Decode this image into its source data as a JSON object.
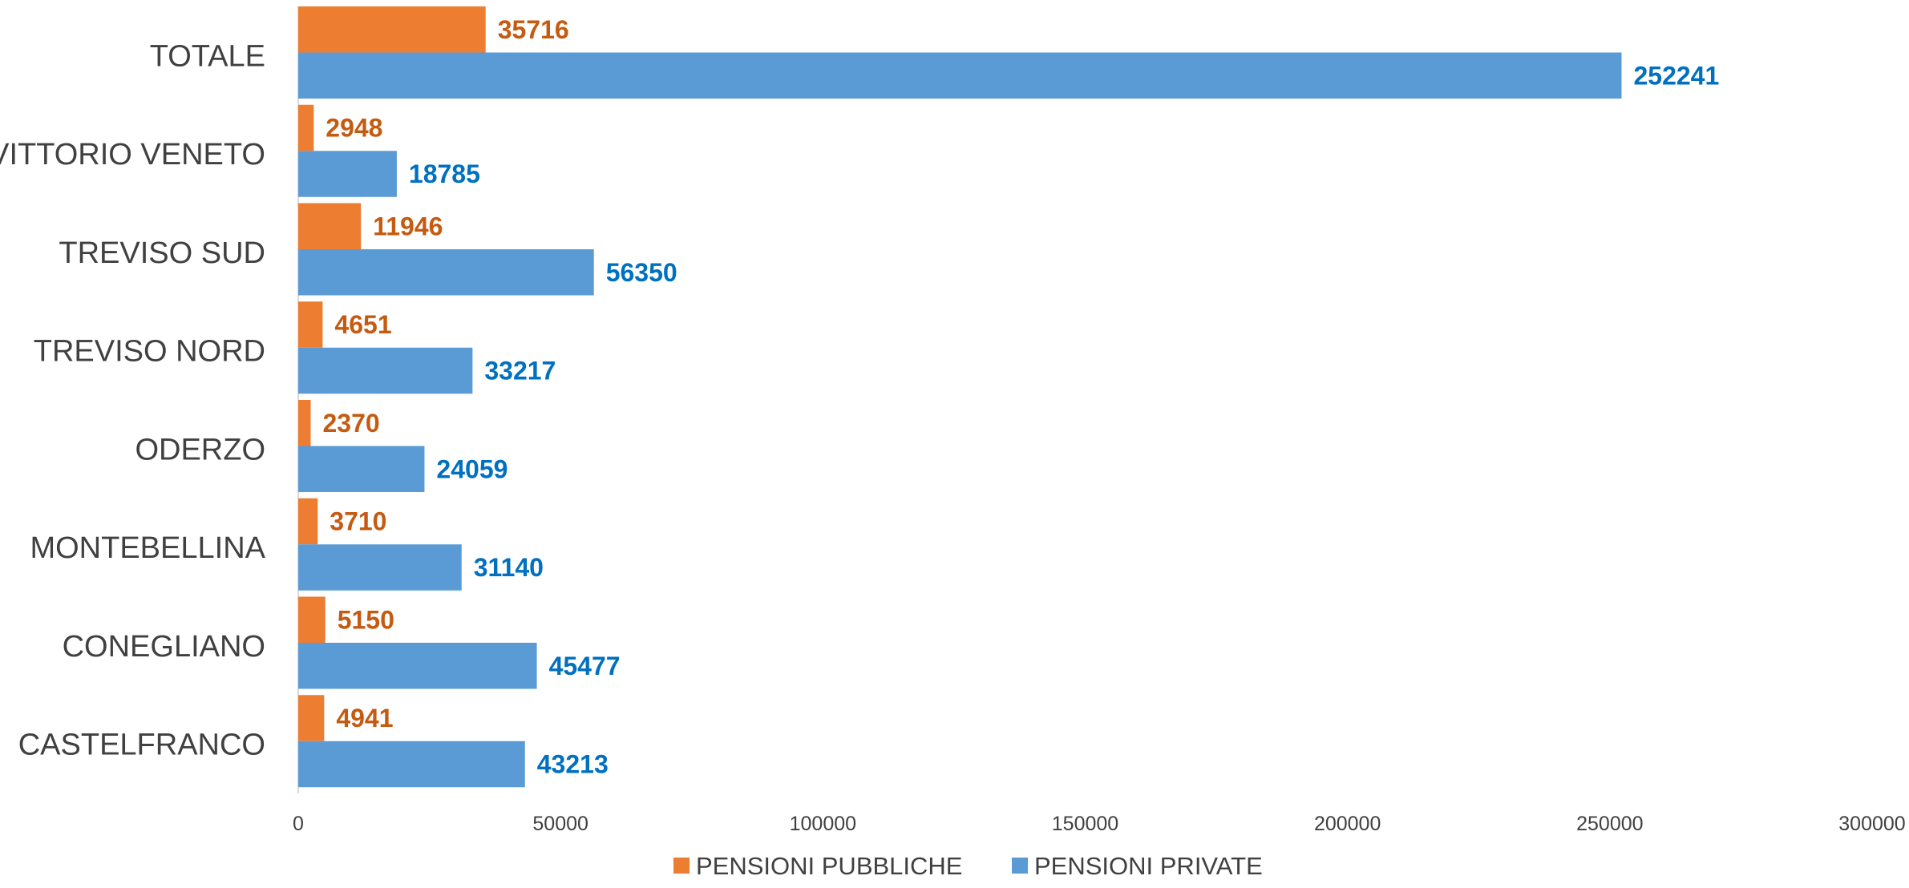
{
  "chart_data": {
    "type": "bar",
    "orientation": "horizontal",
    "categories": [
      "TOTALE",
      "VITTORIO VENETO",
      "TREVISO SUD",
      "TREVISO NORD",
      "ODERZO",
      "MONTEBELLINA",
      "CONEGLIANO",
      "CASTELFRANCO"
    ],
    "series": [
      {
        "name": "PENSIONI PUBBLICHE",
        "color": "#ED7D31",
        "label_color": "#C55A11",
        "values": [
          35716,
          2948,
          11946,
          4651,
          2370,
          3710,
          5150,
          4941
        ]
      },
      {
        "name": "PENSIONI PRIVATE",
        "color": "#5B9BD5",
        "label_color": "#0070C0",
        "values": [
          252241,
          18785,
          56350,
          33217,
          24059,
          31140,
          45477,
          43213
        ]
      }
    ],
    "xlim": [
      0,
      300000
    ],
    "xticks": [
      0,
      50000,
      100000,
      150000,
      200000,
      250000,
      300000
    ],
    "xtick_labels": [
      "0",
      "50000",
      "100000",
      "150000",
      "200000",
      "250000",
      "300000"
    ],
    "title": "",
    "xlabel": "",
    "ylabel": "",
    "grid": false,
    "legend_position": "bottom",
    "data_labels": true
  }
}
